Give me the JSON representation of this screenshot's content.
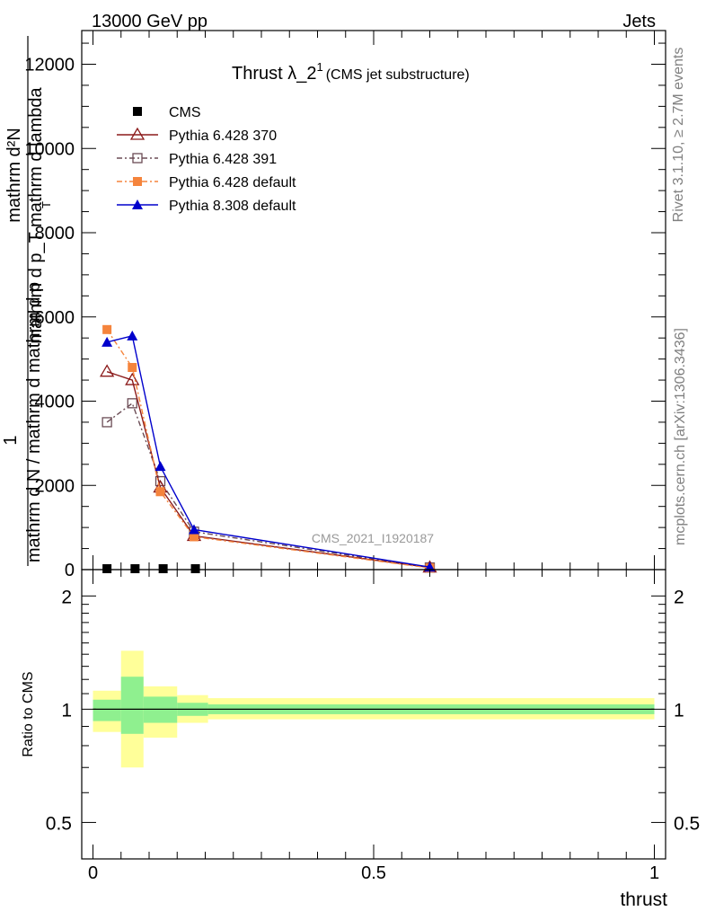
{
  "header": {
    "energy_label": "13000 GeV pp",
    "process_label": "Jets"
  },
  "side_text": {
    "rivet": "Rivet 3.1.10, ≥ 2.7M events",
    "mcplots": "mcplots.cern.ch [arXiv:1306.3436]"
  },
  "watermark": "CMS_2021_I1920187",
  "colors": {
    "cms": "#000000",
    "p370": "#8b1a1a",
    "p391": "#6b4c55",
    "p6def": "#f5843c",
    "p8def": "#0000cc",
    "band_inner": "#8ff08f",
    "band_outer": "#ffff99"
  },
  "chart_data": [
    {
      "id": "main",
      "type": "line",
      "title": "Thrust λ_2",
      "title_superscript": "1",
      "subtitle": "(CMS jet substructure)",
      "ylabel_numerator_line1": "mathrm d²N",
      "ylabel_numerator_line2": "mathrm d p_T mathrm d lambda",
      "ylabel_numerator_sub": "T",
      "ylabel_one": "1",
      "ylabel_denominator": "mathrm d N / mathrm d mathrm d p",
      "xlim": [
        -0.02,
        1.02
      ],
      "ylim": [
        0,
        12800
      ],
      "yticks": [
        0,
        2000,
        4000,
        6000,
        8000,
        10000,
        12000
      ],
      "ytick_labels": [
        "0",
        "2000",
        "4000",
        "6000",
        "8000",
        "10000",
        "12000"
      ],
      "series": [
        {
          "key": "cms",
          "name": "CMS",
          "marker": "square",
          "dash": "",
          "x": [
            0.025,
            0.075,
            0.125,
            0.1825
          ],
          "y": [
            0,
            0,
            0,
            0
          ]
        },
        {
          "key": "p370",
          "name": "Pythia 6.428 370",
          "marker": "triangle-open",
          "dash": "",
          "x": [
            0.025,
            0.07,
            0.12,
            0.18,
            0.6
          ],
          "y": [
            4700,
            4500,
            1950,
            800,
            50
          ]
        },
        {
          "key": "p391",
          "name": "Pythia 6.428 391",
          "marker": "square-open",
          "dash": "6,3,2,3",
          "x": [
            0.025,
            0.07,
            0.12,
            0.18,
            0.6
          ],
          "y": [
            3500,
            3950,
            2100,
            900,
            50
          ]
        },
        {
          "key": "p6def",
          "name": "Pythia 6.428 default",
          "marker": "square",
          "dash": "6,3,2,3",
          "x": [
            0.025,
            0.07,
            0.12,
            0.18,
            0.6
          ],
          "y": [
            5700,
            4800,
            1850,
            780,
            40
          ]
        },
        {
          "key": "p8def",
          "name": "Pythia 8.308 default",
          "marker": "triangle",
          "dash": "",
          "x": [
            0.025,
            0.07,
            0.12,
            0.18,
            0.6
          ],
          "y": [
            5400,
            5550,
            2450,
            950,
            60
          ]
        }
      ]
    },
    {
      "id": "ratio",
      "type": "area",
      "ylabel": "Ratio to CMS",
      "xlabel": "thrust",
      "xlim": [
        -0.02,
        1.02
      ],
      "ylim": [
        0.4,
        2.35
      ],
      "yticks": [
        0.5,
        1,
        2
      ],
      "ytick_labels": [
        "0.5",
        "1",
        "2"
      ],
      "xticks": [
        0,
        0.5,
        1
      ],
      "xtick_labels": [
        "0",
        "0.5",
        "1"
      ],
      "bins": [
        {
          "x0": 0.0,
          "x1": 0.05,
          "inner": [
            0.93,
            1.06
          ],
          "outer": [
            0.87,
            1.12
          ]
        },
        {
          "x0": 0.05,
          "x1": 0.09,
          "inner": [
            0.86,
            1.22
          ],
          "outer": [
            0.7,
            1.43
          ]
        },
        {
          "x0": 0.09,
          "x1": 0.15,
          "inner": [
            0.92,
            1.08
          ],
          "outer": [
            0.84,
            1.15
          ]
        },
        {
          "x0": 0.15,
          "x1": 0.205,
          "inner": [
            0.96,
            1.04
          ],
          "outer": [
            0.92,
            1.09
          ]
        },
        {
          "x0": 0.205,
          "x1": 1.0,
          "inner": [
            0.97,
            1.03
          ],
          "outer": [
            0.94,
            1.07
          ]
        }
      ]
    }
  ]
}
